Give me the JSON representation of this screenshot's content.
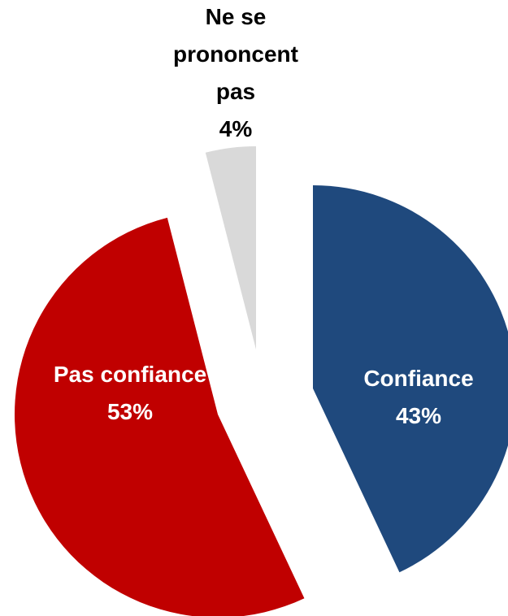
{
  "chart_data": {
    "type": "pie",
    "categories": [
      "Confiance",
      "Pas confiance",
      "Ne se prononcent pas"
    ],
    "values": [
      43,
      53,
      4
    ],
    "value_labels": [
      "43%",
      "53%",
      "4%"
    ],
    "colors": [
      "#1f497d",
      "#c00000",
      "#d9d9d9"
    ],
    "label_colors": [
      "#ffffff",
      "#ffffff",
      "#000000"
    ]
  }
}
